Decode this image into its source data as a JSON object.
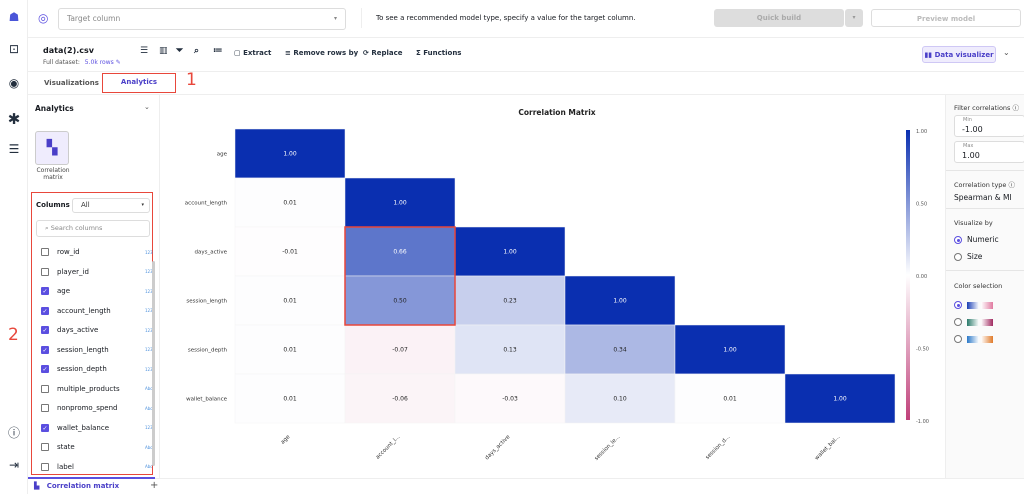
{
  "rail": {
    "icons": [
      "canvas-logo-icon",
      "chip-icon",
      "model-icon",
      "asterisk-icon",
      "list-icon",
      "help-icon",
      "sign-out-icon"
    ]
  },
  "topbar": {
    "target_placeholder": "Target column",
    "hint": "To see a recommended model type, specify a value for the target column.",
    "quick_build": "Quick build",
    "preview_model": "Preview model"
  },
  "dataset": {
    "name": "data(2).csv",
    "full_label": "Full dataset:",
    "rows": "5.0k rows"
  },
  "toolbar": {
    "extract": "Extract",
    "remove_rows": "Remove rows by",
    "replace": "Replace",
    "functions": "Functions",
    "data_visualizer": "Data visualizer"
  },
  "tabs": [
    {
      "label": "Visualizations",
      "active": false
    },
    {
      "label": "Analytics",
      "active": true
    }
  ],
  "annotations": {
    "one": "1",
    "two": "2"
  },
  "left": {
    "section": "Analytics",
    "card_label": "Correlation matrix",
    "columns_label": "Columns",
    "columns_filter": "All",
    "search_placeholder": "Search columns",
    "columns": [
      {
        "name": "row_id",
        "checked": false,
        "type": "123"
      },
      {
        "name": "player_id",
        "checked": false,
        "type": "123"
      },
      {
        "name": "age",
        "checked": true,
        "type": "123"
      },
      {
        "name": "account_length",
        "checked": true,
        "type": "123"
      },
      {
        "name": "days_active",
        "checked": true,
        "type": "123"
      },
      {
        "name": "session_length",
        "checked": true,
        "type": "123"
      },
      {
        "name": "session_depth",
        "checked": true,
        "type": "123"
      },
      {
        "name": "multiple_products",
        "checked": false,
        "type": "Abc"
      },
      {
        "name": "nonpromo_spend",
        "checked": false,
        "type": "Abc"
      },
      {
        "name": "wallet_balance",
        "checked": true,
        "type": "123"
      },
      {
        "name": "state",
        "checked": false,
        "type": "Abc"
      },
      {
        "name": "label",
        "checked": false,
        "type": "Abc"
      }
    ]
  },
  "bottom_tab": {
    "label": "Correlation matrix"
  },
  "right": {
    "filter_title": "Filter correlations",
    "min_label": "Min",
    "min_value": "-1.00",
    "max_label": "Max",
    "max_value": "1.00",
    "corr_type_label": "Correlation type",
    "corr_type": "Spearman & MI",
    "visualize_label": "Visualize by",
    "visualize_options": [
      "Numeric",
      "Size"
    ],
    "visualize_selected": "Numeric",
    "color_label": "Color selection",
    "color_schemes": [
      [
        "#1a3fb5",
        "#e07aa0"
      ],
      [
        "#2a7a6a",
        "#a02a60"
      ],
      [
        "#2a78c8",
        "#e07a2a"
      ]
    ],
    "color_selected": 0
  },
  "chart_data": {
    "type": "heatmap",
    "title": "Correlation Matrix",
    "rows": [
      "age",
      "account_length",
      "days_active",
      "session_length",
      "session_depth",
      "wallet_balance"
    ],
    "x_tick_labels": [
      "age",
      "account_l...",
      "days_active",
      "session_le...",
      "session_d...",
      "wallet_bal..."
    ],
    "values": [
      [
        1.0
      ],
      [
        0.01,
        1.0
      ],
      [
        -0.01,
        0.66,
        1.0
      ],
      [
        0.01,
        0.5,
        0.23,
        1.0
      ],
      [
        0.01,
        -0.07,
        0.13,
        0.34,
        1.0
      ],
      [
        0.01,
        -0.06,
        -0.03,
        0.1,
        0.01,
        1.0
      ]
    ],
    "value_labels": [
      [
        "1.00"
      ],
      [
        "0.01",
        "1.00"
      ],
      [
        "-0.01",
        "0.66",
        "1.00"
      ],
      [
        "0.01",
        "0.50",
        "0.23",
        "1.00"
      ],
      [
        "0.01",
        "-0.07",
        "0.13",
        "0.34",
        "1.00"
      ],
      [
        "0.01",
        "-0.06",
        "-0.03",
        "0.10",
        "0.01",
        "1.00"
      ]
    ],
    "colorbar": {
      "range": [
        -1,
        1
      ],
      "ticks": [
        "1.00",
        "0.50",
        "0.00",
        "-0.50",
        "-1.00"
      ],
      "positive_color": "#0a2fb0",
      "negative_color": "#c0407a"
    },
    "highlighted_cells": [
      [
        2,
        1
      ],
      [
        3,
        1
      ]
    ]
  }
}
